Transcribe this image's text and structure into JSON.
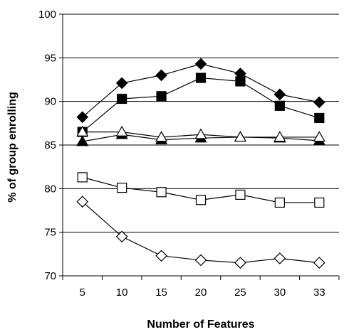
{
  "chart_data": {
    "type": "line",
    "title": "",
    "xlabel": "Number of Features",
    "ylabel": "% of group enrolling",
    "x_tick_labels": [
      "5",
      "10",
      "15",
      "20",
      "25",
      "30",
      "33"
    ],
    "y_tick_labels": [
      "70",
      "75",
      "80",
      "85",
      "90",
      "95",
      "100"
    ],
    "ylim": [
      70,
      100
    ],
    "grid": "horizontal",
    "legend": "none",
    "series": [
      {
        "marker": "diamond",
        "fill": "#000000",
        "values": [
          88.2,
          92.1,
          93.0,
          94.3,
          93.2,
          90.8,
          89.9
        ]
      },
      {
        "marker": "square",
        "fill": "#000000",
        "values": [
          86.5,
          90.3,
          90.6,
          92.7,
          92.3,
          89.5,
          88.1
        ]
      },
      {
        "marker": "triangle",
        "fill": "#000000",
        "values": [
          85.4,
          86.2,
          85.6,
          85.8,
          85.9,
          85.8,
          85.5
        ]
      },
      {
        "marker": "triangle",
        "fill": "#ffffff",
        "values": [
          86.5,
          86.5,
          85.9,
          86.2,
          85.9,
          85.9,
          85.9
        ]
      },
      {
        "marker": "square",
        "fill": "#ffffff",
        "values": [
          81.3,
          80.1,
          79.6,
          78.7,
          79.3,
          78.4,
          78.4
        ]
      },
      {
        "marker": "diamond",
        "fill": "#ffffff",
        "values": [
          78.5,
          74.5,
          72.3,
          71.8,
          71.5,
          72.0,
          71.5
        ]
      }
    ]
  }
}
